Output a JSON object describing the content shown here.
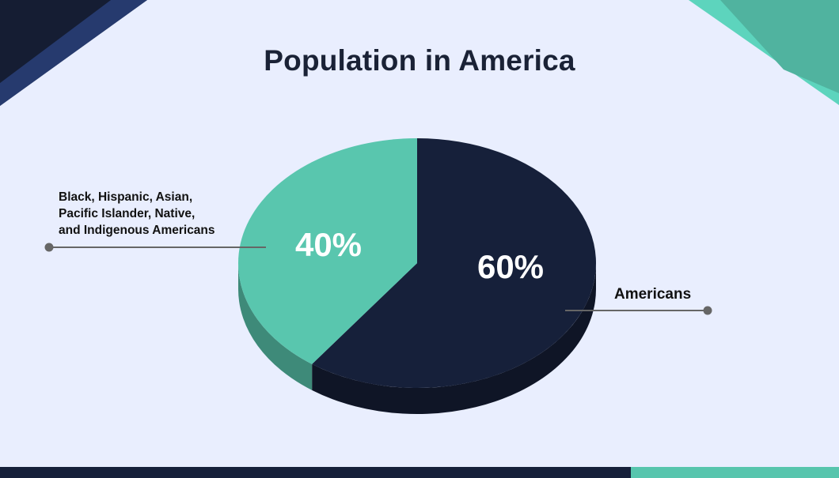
{
  "colors": {
    "background": "#e9eefe",
    "dark": "#16203a",
    "dark_side": "#0f1526",
    "teal": "#59c6ae",
    "teal_side": "#3e8a79",
    "text": "#1a2236"
  },
  "chart_data": {
    "type": "pie",
    "title": "Population in America",
    "slices": [
      {
        "label": "Americans",
        "value": 60,
        "value_label": "60%",
        "color": "#16203a"
      },
      {
        "label": "Black, Hispanic, Asian, Pacific Islander, Native, and Indigenous Americans",
        "value": 40,
        "value_label": "40%",
        "color": "#59c6ae"
      }
    ]
  },
  "labels": {
    "left_lines": [
      "Black, Hispanic, Asian,",
      "Pacific Islander, Native,",
      "and Indigenous Americans"
    ],
    "right": "Americans"
  }
}
